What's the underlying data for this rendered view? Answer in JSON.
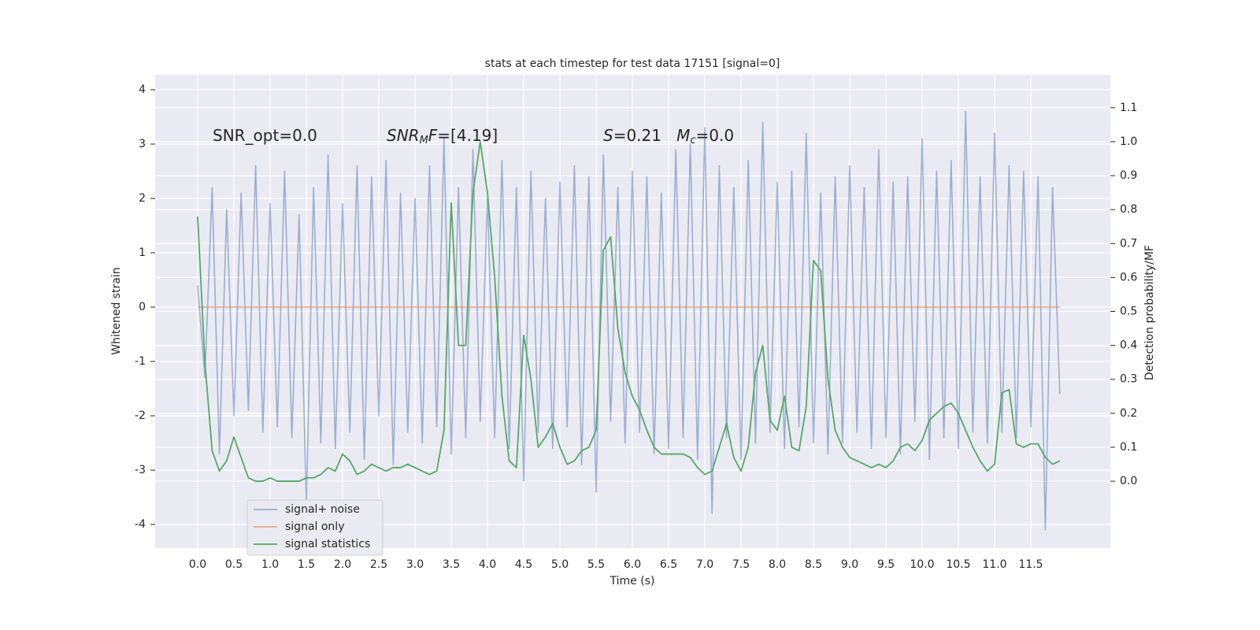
{
  "chart_data": {
    "type": "line",
    "title": "stats at each timestep for test data 17151 [signal=0]",
    "xlabel": "Time (s)",
    "ylabel": "Whitened strain",
    "y2label": "Detection probability/MF",
    "annotations": [
      [
        "SNR_opt=0.0"
      ],
      [
        "SNR",
        "M",
        "F",
        "=[4.19]"
      ],
      [
        "S",
        "=0.21   ",
        "M",
        "c",
        "=0.0"
      ]
    ],
    "grid": true,
    "legend": "lower left",
    "xlim": [
      -0.587,
      12.598
    ],
    "ylim": [
      -4.435,
      4.275
    ],
    "y2lim": [
      -0.197,
      1.197
    ],
    "xticks": [
      {
        "value": 0,
        "label": "0.0"
      },
      0.5,
      {
        "value": 1,
        "label": "1.0"
      },
      1.5,
      {
        "value": 2,
        "label": "2.0"
      },
      2.5,
      {
        "value": 3,
        "label": "3.0"
      },
      3.5,
      {
        "value": 4,
        "label": "4.0"
      },
      4.5,
      {
        "value": 5,
        "label": "5.0"
      },
      5.5,
      {
        "value": 6,
        "label": "6.0"
      },
      6.5,
      {
        "value": 7,
        "label": "7.0"
      },
      7.5,
      {
        "value": 8,
        "label": "8.0"
      },
      8.5,
      {
        "value": 9,
        "label": "9.0"
      },
      9.5,
      {
        "value": 10,
        "label": "10.0"
      },
      10.5,
      {
        "value": 11,
        "label": "11.0"
      },
      11.5
    ],
    "yticks": [
      -4,
      -3,
      -2,
      -1,
      0,
      1,
      2,
      3,
      4
    ],
    "y2ticks": [
      {
        "value": 0,
        "label": "0.0"
      },
      0.1,
      0.2,
      0.3,
      0.4,
      0.5,
      0.6,
      0.7,
      0.8,
      0.9,
      {
        "value": 1,
        "label": "1.0"
      },
      1.1
    ],
    "x": [
      0,
      0.1,
      0.2,
      0.3,
      0.4,
      0.5,
      0.6,
      0.7,
      0.8,
      0.9,
      1,
      1.1,
      1.2,
      1.3,
      1.4,
      1.5,
      1.6,
      1.7,
      1.8,
      1.9,
      2,
      2.1,
      2.2,
      2.3,
      2.4,
      2.5,
      2.6,
      2.7,
      2.8,
      2.9,
      3,
      3.1,
      3.2,
      3.3,
      3.4,
      3.5,
      3.6,
      3.7,
      3.8,
      3.9,
      4,
      4.1,
      4.2,
      4.3,
      4.4,
      4.5,
      4.6,
      4.7,
      4.8,
      4.9,
      5,
      5.1,
      5.2,
      5.3,
      5.4,
      5.5,
      5.6,
      5.7,
      5.8,
      5.9,
      6,
      6.1,
      6.2,
      6.3,
      6.4,
      6.5,
      6.6,
      6.7,
      6.8,
      6.9,
      7,
      7.1,
      7.2,
      7.3,
      7.4,
      7.5,
      7.6,
      7.7,
      7.8,
      7.9,
      8,
      8.1,
      8.2,
      8.3,
      8.4,
      8.5,
      8.6,
      8.7,
      8.8,
      8.9,
      9,
      9.1,
      9.2,
      9.3,
      9.4,
      9.5,
      9.6,
      9.7,
      9.8,
      9.9,
      10,
      10.1,
      10.2,
      10.3,
      10.4,
      10.5,
      10.6,
      10.7,
      10.8,
      10.9,
      11,
      11.1,
      11.2,
      11.3,
      11.4,
      11.5,
      11.6,
      11.7,
      11.8,
      11.9
    ],
    "series": [
      {
        "name": "signal+ noise",
        "color": "#4c72b0",
        "values": [
          0.4,
          -1.3,
          2.2,
          -2.7,
          1.8,
          -2.0,
          2.1,
          -1.9,
          2.6,
          -2.3,
          1.9,
          -2.2,
          2.5,
          -2.4,
          1.7,
          -3.6,
          2.2,
          -2.5,
          2.8,
          -2.6,
          1.9,
          -2.3,
          2.6,
          -2.8,
          2.4,
          -2.0,
          2.7,
          -2.9,
          2.1,
          -2.3,
          2.0,
          -2.5,
          2.6,
          -2.2,
          3.1,
          -2.7,
          2.2,
          -2.4,
          2.9,
          -2.1,
          2.0,
          -2.4,
          2.7,
          -2.6,
          2.2,
          -3.2,
          2.5,
          -2.3,
          2.0,
          -2.6,
          2.3,
          -2.2,
          2.6,
          -2.9,
          2.4,
          -3.4,
          2.8,
          -2.1,
          2.2,
          -2.5,
          2.5,
          -2.3,
          2.4,
          -2.7,
          2.1,
          -2.6,
          2.9,
          -2.4,
          3.0,
          -2.8,
          3.3,
          -3.8,
          2.6,
          -2.4,
          2.2,
          -2.8,
          2.7,
          -2.5,
          3.4,
          -2.3,
          2.3,
          -2.6,
          2.5,
          -2.2,
          3.2,
          -2.5,
          2.1,
          -2.7,
          2.4,
          -2.5,
          2.6,
          -2.3,
          2.2,
          -2.6,
          2.9,
          -2.4,
          2.3,
          -2.7,
          2.4,
          -2.1,
          3.1,
          -2.8,
          2.5,
          -2.4,
          2.7,
          -2.6,
          3.6,
          -2.3,
          2.4,
          -2.5,
          3.2,
          -2.3,
          2.6,
          -2.4,
          2.5,
          -2.2,
          2.4,
          -4.1,
          2.2,
          -1.6
        ]
      },
      {
        "name": "signal only",
        "color": "#dd8452",
        "values": [
          0,
          0,
          0,
          0,
          0,
          0,
          0,
          0,
          0,
          0,
          0,
          0,
          0,
          0,
          0,
          0,
          0,
          0,
          0,
          0,
          0,
          0,
          0,
          0,
          0,
          0,
          0,
          0,
          0,
          0,
          0,
          0,
          0,
          0,
          0,
          0,
          0,
          0,
          0,
          0,
          0,
          0,
          0,
          0,
          0,
          0,
          0,
          0,
          0,
          0,
          0,
          0,
          0,
          0,
          0,
          0,
          0,
          0,
          0,
          0,
          0,
          0,
          0,
          0,
          0,
          0,
          0,
          0,
          0,
          0,
          0,
          0,
          0,
          0,
          0,
          0,
          0,
          0,
          0,
          0,
          0,
          0,
          0,
          0,
          0,
          0,
          0,
          0,
          0,
          0,
          0,
          0,
          0,
          0,
          0,
          0,
          0,
          0,
          0,
          0,
          0,
          0,
          0,
          0,
          0,
          0,
          0,
          0,
          0,
          0,
          0,
          0,
          0,
          0,
          0,
          0,
          0,
          0,
          0,
          0
        ]
      },
      {
        "name": "signal statistics",
        "color": "#55a868",
        "axis": "y2",
        "values": [
          0.78,
          0.35,
          0.09,
          0.03,
          0.06,
          0.13,
          0.07,
          0.01,
          0,
          0,
          0.01,
          0,
          0,
          0,
          0,
          0.01,
          0.01,
          0.02,
          0.04,
          0.03,
          0.08,
          0.06,
          0.02,
          0.03,
          0.05,
          0.04,
          0.03,
          0.04,
          0.04,
          0.05,
          0.04,
          0.03,
          0.02,
          0.03,
          0.15,
          0.82,
          0.4,
          0.4,
          0.85,
          1.0,
          0.85,
          0.6,
          0.25,
          0.06,
          0.04,
          0.43,
          0.3,
          0.1,
          0.13,
          0.17,
          0.1,
          0.05,
          0.06,
          0.09,
          0.1,
          0.15,
          0.68,
          0.72,
          0.45,
          0.32,
          0.25,
          0.21,
          0.15,
          0.1,
          0.08,
          0.08,
          0.08,
          0.08,
          0.07,
          0.04,
          0.02,
          0.03,
          0.1,
          0.17,
          0.07,
          0.03,
          0.1,
          0.32,
          0.4,
          0.18,
          0.15,
          0.25,
          0.1,
          0.09,
          0.22,
          0.65,
          0.62,
          0.3,
          0.15,
          0.1,
          0.07,
          0.06,
          0.05,
          0.04,
          0.05,
          0.04,
          0.06,
          0.1,
          0.11,
          0.09,
          0.12,
          0.18,
          0.2,
          0.22,
          0.23,
          0.2,
          0.15,
          0.1,
          0.06,
          0.03,
          0.05,
          0.26,
          0.27,
          0.11,
          0.1,
          0.11,
          0.11,
          0.07,
          0.05,
          0.06
        ]
      }
    ]
  }
}
